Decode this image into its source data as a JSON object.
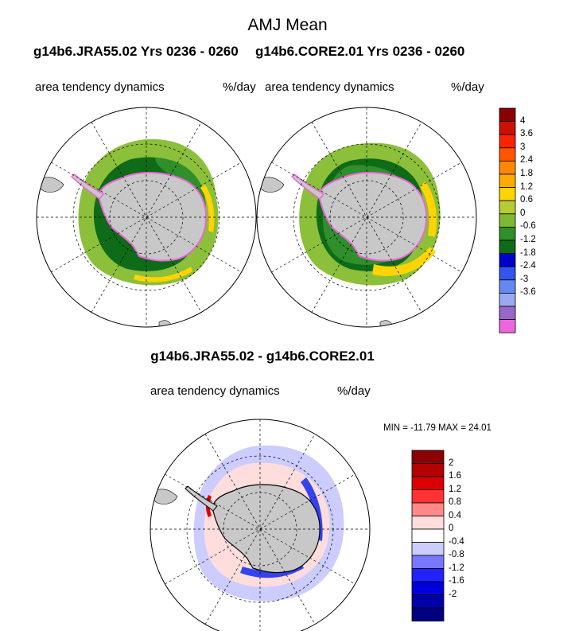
{
  "title": "AMJ Mean",
  "left_run": "g14b6.JRA55.02  Yrs 0236 - 0260",
  "right_run": "g14b6.CORE2.01  Yrs 0236 - 0260",
  "diff_title": "g14b6.JRA55.02 - g14b6.CORE2.01",
  "panels": {
    "left": {
      "label": "area tendency dynamics",
      "units": "%/day"
    },
    "right": {
      "label": "area tendency dynamics",
      "units": "%/day"
    },
    "diff": {
      "label": "area tendency dynamics",
      "units": "%/day"
    }
  },
  "minmax": "MIN = -11.79 MAX =  24.01",
  "colorbar_top": {
    "labels": [
      "4",
      "3.6",
      "3",
      "2.4",
      "1.8",
      "1.2",
      "0.6",
      "0",
      "-0.6",
      "-1.2",
      "-1.8",
      "-2.4",
      "-3",
      "-3.6"
    ],
    "colors": [
      "#8b0000",
      "#cc1100",
      "#ff2200",
      "#ff5500",
      "#ff8800",
      "#ffaa00",
      "#ffd400",
      "#b5cc33",
      "#7fb832",
      "#2f8f2a",
      "#0e6b18",
      "#0000cc",
      "#3355ee",
      "#6688ee",
      "#99aaee",
      "#9966cc",
      "#ee66dd"
    ]
  },
  "colorbar_diff": {
    "labels": [
      "2",
      "1.6",
      "1.2",
      "0.8",
      "0.4",
      "0",
      "-0.4",
      "-0.8",
      "-1.2",
      "-1.6",
      "-2"
    ],
    "colors": [
      "#8b0000",
      "#b30000",
      "#dd0000",
      "#ff3333",
      "#ff8888",
      "#ffdddd",
      "#ffffff",
      "#ccccff",
      "#7777ff",
      "#2222ff",
      "#0000dd",
      "#0000aa",
      "#000080"
    ]
  },
  "map_colors": {
    "land": "#c8c8c8",
    "green_light": "#8cbf3a",
    "green_mid": "#2f8f2a",
    "green_dark": "#0e6b18",
    "yellow": "#ffd400",
    "magenta": "#ee66dd",
    "diff_blue_light": "#ccccff",
    "diff_blue": "#3344ee",
    "diff_pink": "#ffcccc",
    "diff_red": "#dd0000"
  }
}
